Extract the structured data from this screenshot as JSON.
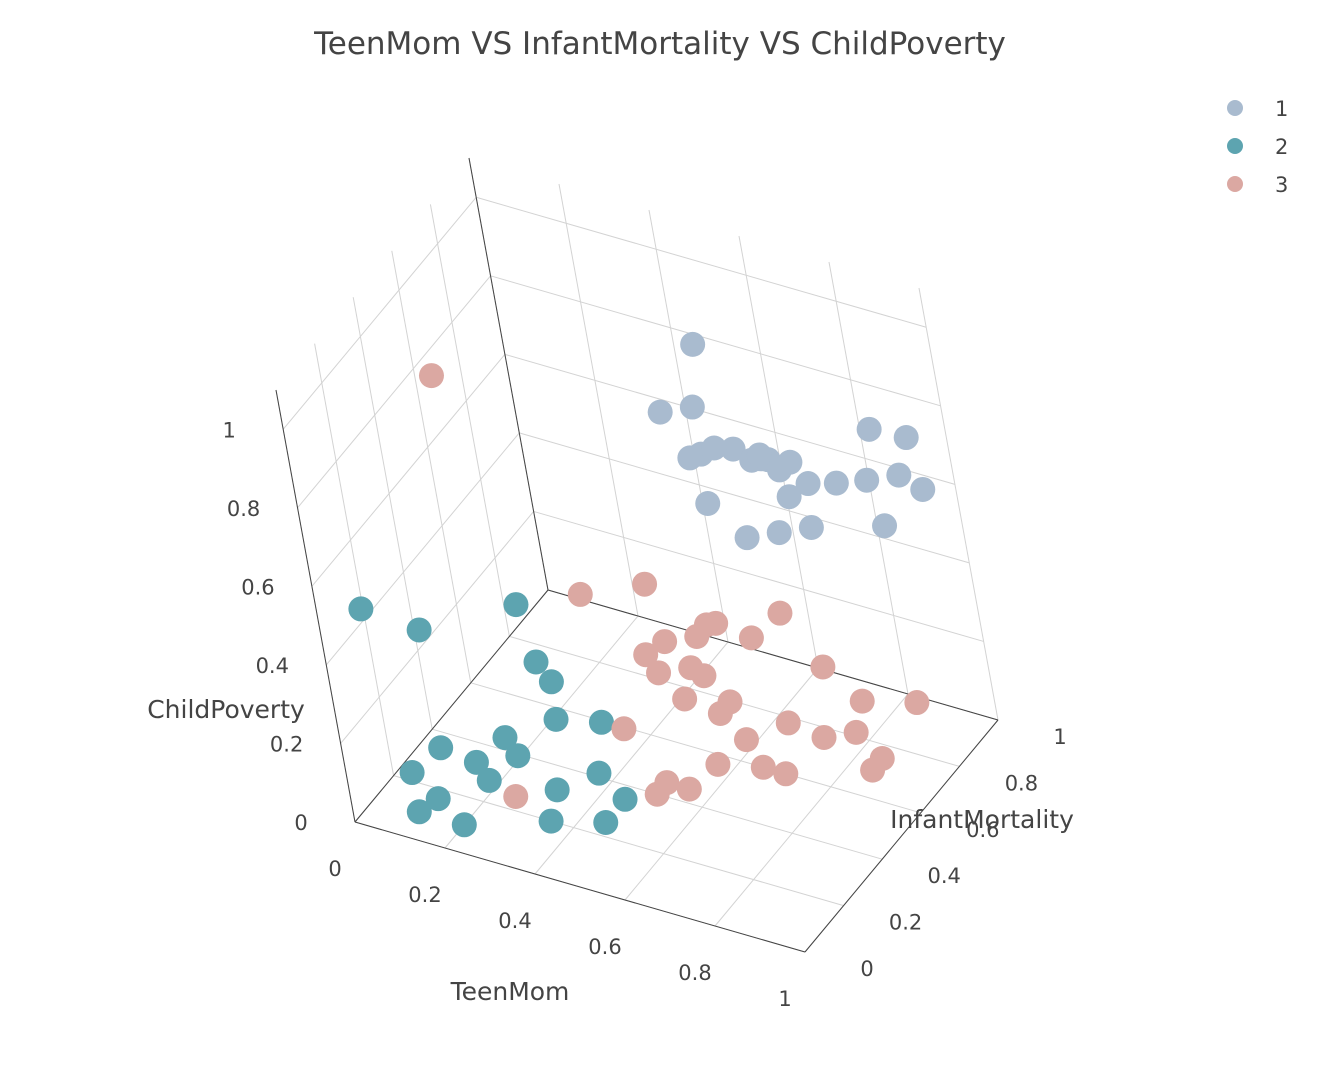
{
  "chart_data": {
    "type": "scatter3d",
    "title": "TeenMom VS InfantMortality VS ChildPoverty",
    "axes": {
      "x": {
        "label": "TeenMom",
        "range": [
          0,
          1
        ],
        "ticks": [
          "0",
          "0.2",
          "0.4",
          "0.6",
          "0.8",
          "1"
        ]
      },
      "y": {
        "label": "InfantMortality",
        "range": [
          0,
          1
        ],
        "ticks": [
          "0",
          "0.2",
          "0.4",
          "0.6",
          "0.8",
          "1"
        ]
      },
      "z": {
        "label": "ChildPoverty",
        "range": [
          0,
          1.1
        ],
        "ticks": [
          "0",
          "0.2",
          "0.4",
          "0.6",
          "0.8",
          "1"
        ]
      }
    },
    "grid": true,
    "legend": {
      "position": "top-right"
    },
    "series": [
      {
        "name": "1",
        "color": "#a9bbcf",
        "points": [
          [
            0.5,
            0.9,
            0.85
          ],
          [
            0.45,
            0.8,
            0.72
          ],
          [
            0.5,
            0.85,
            0.72
          ],
          [
            0.5,
            0.8,
            0.62
          ],
          [
            0.5,
            0.85,
            0.6
          ],
          [
            0.55,
            0.82,
            0.65
          ],
          [
            0.55,
            0.9,
            0.6
          ],
          [
            0.6,
            0.88,
            0.6
          ],
          [
            0.6,
            0.92,
            0.58
          ],
          [
            0.65,
            0.9,
            0.58
          ],
          [
            0.6,
            0.95,
            0.56
          ],
          [
            0.65,
            0.95,
            0.57
          ],
          [
            0.65,
            0.92,
            0.5
          ],
          [
            0.7,
            0.92,
            0.55
          ],
          [
            0.6,
            0.8,
            0.45
          ],
          [
            0.65,
            0.85,
            0.45
          ],
          [
            0.7,
            0.9,
            0.45
          ],
          [
            0.75,
            0.95,
            0.55
          ],
          [
            0.85,
            0.95,
            0.72
          ],
          [
            0.85,
            0.9,
            0.62
          ],
          [
            0.9,
            0.95,
            0.62
          ],
          [
            0.95,
            0.92,
            0.75
          ],
          [
            0.95,
            0.95,
            0.6
          ],
          [
            0.9,
            0.85,
            0.55
          ],
          [
            0.62,
            0.88,
            0.62
          ],
          [
            0.55,
            0.75,
            0.55
          ]
        ]
      },
      {
        "name": "2",
        "color": "#5da4b0",
        "points": [
          [
            0.05,
            0.1,
            0.5
          ],
          [
            0.15,
            0.15,
            0.45
          ],
          [
            0.25,
            0.4,
            0.4
          ],
          [
            0.3,
            0.35,
            0.3
          ],
          [
            0.3,
            0.4,
            0.22
          ],
          [
            0.35,
            0.3,
            0.2
          ],
          [
            0.25,
            0.25,
            0.15
          ],
          [
            0.3,
            0.2,
            0.15
          ],
          [
            0.35,
            0.25,
            0.05
          ],
          [
            0.4,
            0.35,
            0.05
          ],
          [
            0.2,
            0.2,
            0.1
          ],
          [
            0.15,
            0.15,
            0.15
          ],
          [
            0.1,
            0.1,
            0.1
          ],
          [
            0.15,
            0.1,
            0.05
          ],
          [
            0.1,
            0.1,
            0.0
          ],
          [
            0.2,
            0.1,
            0.0
          ],
          [
            0.45,
            0.35,
            0.0
          ],
          [
            0.35,
            0.2,
            0.0
          ],
          [
            0.45,
            0.25,
            0.0
          ],
          [
            0.25,
            0.15,
            0.1
          ],
          [
            0.4,
            0.4,
            0.15
          ]
        ]
      },
      {
        "name": "3",
        "color": "#dba8a2",
        "points": [
          [
            0.15,
            0.4,
            0.95
          ],
          [
            0.35,
            0.5,
            0.4
          ],
          [
            0.45,
            0.6,
            0.4
          ],
          [
            0.5,
            0.55,
            0.3
          ],
          [
            0.55,
            0.6,
            0.3
          ],
          [
            0.5,
            0.5,
            0.25
          ],
          [
            0.45,
            0.55,
            0.25
          ],
          [
            0.55,
            0.55,
            0.25
          ],
          [
            0.55,
            0.65,
            0.3
          ],
          [
            0.6,
            0.6,
            0.35
          ],
          [
            0.65,
            0.65,
            0.3
          ],
          [
            0.7,
            0.7,
            0.35
          ],
          [
            0.55,
            0.5,
            0.2
          ],
          [
            0.6,
            0.55,
            0.15
          ],
          [
            0.65,
            0.55,
            0.1
          ],
          [
            0.7,
            0.65,
            0.1
          ],
          [
            0.75,
            0.75,
            0.2
          ],
          [
            0.8,
            0.8,
            0.1
          ],
          [
            0.75,
            0.7,
            0.05
          ],
          [
            0.8,
            0.75,
            0.05
          ],
          [
            0.6,
            0.5,
            0.05
          ],
          [
            0.45,
            0.4,
            0.15
          ],
          [
            0.65,
            0.6,
            0.0
          ],
          [
            0.5,
            0.45,
            0.0
          ],
          [
            0.55,
            0.45,
            0.0
          ],
          [
            0.7,
            0.6,
            0.0
          ],
          [
            0.85,
            0.7,
            0.0
          ],
          [
            0.85,
            0.75,
            0.0
          ],
          [
            0.5,
            0.4,
            0.0
          ],
          [
            0.25,
            0.25,
            0.0
          ],
          [
            0.6,
            0.6,
            0.15
          ],
          [
            0.9,
            0.85,
            0.1
          ],
          [
            0.55,
            0.6,
            0.2
          ]
        ]
      }
    ]
  }
}
